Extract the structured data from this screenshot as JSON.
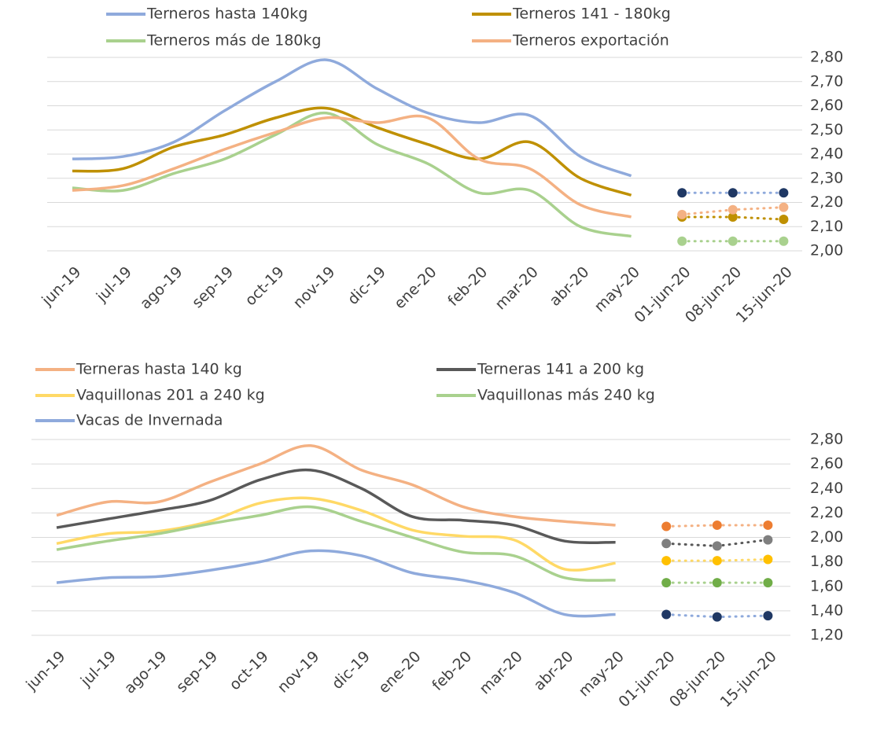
{
  "chart_data": [
    {
      "type": "line",
      "categories": [
        "jun-19",
        "jul-19",
        "ago-19",
        "sep-19",
        "oct-19",
        "nov-19",
        "dic-19",
        "ene-20",
        "feb-20",
        "mar-20",
        "abr-20",
        "may-20",
        "01-jun-20",
        "08-jun-20",
        "15-jun-20"
      ],
      "ylim": [
        2.0,
        2.8
      ],
      "yticks": [
        {
          "value": 2.0,
          "label": "2,00"
        },
        {
          "value": 2.1,
          "label": "2,10"
        },
        {
          "value": 2.2,
          "label": "2,20"
        },
        {
          "value": 2.3,
          "label": "2,30"
        },
        {
          "value": 2.4,
          "label": "2,40"
        },
        {
          "value": 2.5,
          "label": "2,50"
        },
        {
          "value": 2.6,
          "label": "2,60"
        },
        {
          "value": 2.7,
          "label": "2,70"
        },
        {
          "value": 2.8,
          "label": "2,80"
        }
      ],
      "grid": true,
      "series": [
        {
          "name": "Terneros hasta 140kg",
          "color": "#8faadc",
          "marker_color": "#1f3864",
          "values": [
            2.38,
            2.39,
            2.45,
            2.58,
            2.7,
            2.79,
            2.67,
            2.57,
            2.53,
            2.56,
            2.39,
            2.31,
            null,
            null,
            null
          ],
          "weekly_values": [
            null,
            null,
            null,
            null,
            null,
            null,
            null,
            null,
            null,
            null,
            null,
            null,
            2.24,
            2.24,
            2.24
          ]
        },
        {
          "name": "Terneros 141 - 180kg",
          "color": "#bf9000",
          "marker_color": "#bf9000",
          "values": [
            2.33,
            2.34,
            2.43,
            2.48,
            2.55,
            2.59,
            2.51,
            2.44,
            2.38,
            2.45,
            2.3,
            2.23,
            null,
            null,
            null
          ],
          "weekly_values": [
            null,
            null,
            null,
            null,
            null,
            null,
            null,
            null,
            null,
            null,
            null,
            null,
            2.14,
            2.14,
            2.13
          ]
        },
        {
          "name": "Terneros más de 180kg",
          "color": "#a9d18e",
          "marker_color": "#a9d18e",
          "values": [
            2.26,
            2.25,
            2.32,
            2.38,
            2.48,
            2.57,
            2.44,
            2.36,
            2.24,
            2.25,
            2.1,
            2.06,
            null,
            null,
            null
          ],
          "weekly_values": [
            null,
            null,
            null,
            null,
            null,
            null,
            null,
            null,
            null,
            null,
            null,
            null,
            2.04,
            2.04,
            2.04
          ]
        },
        {
          "name": "Terneros exportación",
          "color": "#f4b183",
          "marker_color": "#f4b183",
          "values": [
            2.25,
            2.27,
            2.34,
            2.42,
            2.49,
            2.55,
            2.53,
            2.55,
            2.38,
            2.34,
            2.19,
            2.14,
            null,
            null,
            null
          ],
          "weekly_values": [
            null,
            null,
            null,
            null,
            null,
            null,
            null,
            null,
            null,
            null,
            null,
            null,
            2.15,
            2.17,
            2.18
          ]
        }
      ]
    },
    {
      "type": "line",
      "categories": [
        "jun-19",
        "jul-19",
        "ago-19",
        "sep-19",
        "oct-19",
        "nov-19",
        "dic-19",
        "ene-20",
        "feb-20",
        "mar-20",
        "abr-20",
        "may-20",
        "01-jun-20",
        "08-jun-20",
        "15-jun-20"
      ],
      "ylim": [
        1.2,
        2.8
      ],
      "yticks": [
        {
          "value": 1.2,
          "label": "1,20"
        },
        {
          "value": 1.4,
          "label": "1,40"
        },
        {
          "value": 1.6,
          "label": "1,60"
        },
        {
          "value": 1.8,
          "label": "1,80"
        },
        {
          "value": 2.0,
          "label": "2,00"
        },
        {
          "value": 2.2,
          "label": "2,20"
        },
        {
          "value": 2.4,
          "label": "2,40"
        },
        {
          "value": 2.6,
          "label": "2,60"
        },
        {
          "value": 2.8,
          "label": "2,80"
        }
      ],
      "grid": true,
      "series": [
        {
          "name": "Terneras hasta 140 kg",
          "color": "#f4b183",
          "marker_color": "#ed7d31",
          "values": [
            2.18,
            2.29,
            2.29,
            2.45,
            2.6,
            2.75,
            2.55,
            2.43,
            2.25,
            2.17,
            2.13,
            2.1,
            null,
            null,
            null
          ],
          "weekly_values": [
            null,
            null,
            null,
            null,
            null,
            null,
            null,
            null,
            null,
            null,
            null,
            null,
            2.09,
            2.1,
            2.1
          ]
        },
        {
          "name": "Terneras 141 a 200 kg",
          "color": "#595959",
          "marker_color": "#7f7f7f",
          "values": [
            2.08,
            2.15,
            2.22,
            2.3,
            2.47,
            2.55,
            2.4,
            2.17,
            2.14,
            2.1,
            1.97,
            1.96,
            null,
            null,
            null
          ],
          "weekly_values": [
            null,
            null,
            null,
            null,
            null,
            null,
            null,
            null,
            null,
            null,
            null,
            null,
            1.95,
            1.93,
            1.98
          ]
        },
        {
          "name": "Vaquillonas 201 a 240 kg",
          "color": "#ffd966",
          "marker_color": "#ffc000",
          "values": [
            1.95,
            2.03,
            2.05,
            2.13,
            2.28,
            2.32,
            2.22,
            2.06,
            2.01,
            1.98,
            1.74,
            1.79,
            null,
            null,
            null
          ],
          "weekly_values": [
            null,
            null,
            null,
            null,
            null,
            null,
            null,
            null,
            null,
            null,
            null,
            null,
            1.81,
            1.81,
            1.82
          ]
        },
        {
          "name": "Vaquillonas más 240 kg",
          "color": "#a9d18e",
          "marker_color": "#70ad47",
          "values": [
            1.9,
            1.97,
            2.03,
            2.11,
            2.18,
            2.25,
            2.13,
            2.0,
            1.88,
            1.85,
            1.67,
            1.65,
            null,
            null,
            null
          ],
          "weekly_values": [
            null,
            null,
            null,
            null,
            null,
            null,
            null,
            null,
            null,
            null,
            null,
            null,
            1.63,
            1.63,
            1.63
          ]
        },
        {
          "name": "Vacas de Invernada",
          "color": "#8faadc",
          "marker_color": "#1f3864",
          "values": [
            1.63,
            1.67,
            1.68,
            1.73,
            1.8,
            1.89,
            1.85,
            1.71,
            1.65,
            1.55,
            1.37,
            1.37,
            null,
            null,
            null
          ],
          "weekly_values": [
            null,
            null,
            null,
            null,
            null,
            null,
            null,
            null,
            null,
            null,
            null,
            null,
            1.37,
            1.35,
            1.36
          ]
        }
      ]
    }
  ]
}
